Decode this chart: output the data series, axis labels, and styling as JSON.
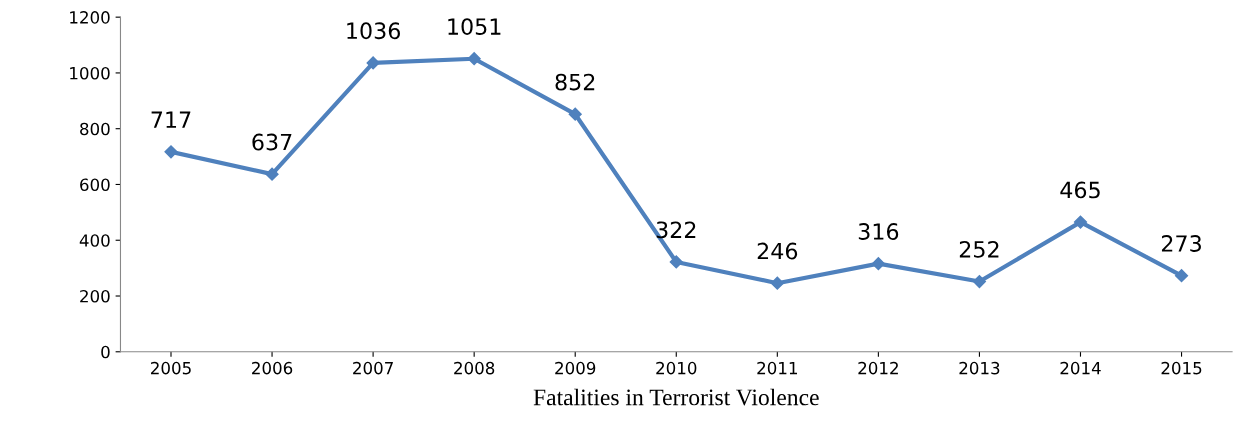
{
  "chart_data": {
    "type": "line",
    "xlabel": "Fatalities in Terrorist Violence",
    "categories": [
      "2005",
      "2006",
      "2007",
      "2008",
      "2009",
      "2010",
      "2011",
      "2012",
      "2013",
      "2014",
      "2015"
    ],
    "series": [
      {
        "color": "#4f81bd",
        "values": [
          717,
          637,
          1036,
          1051,
          852,
          322,
          246,
          316,
          252,
          465,
          273
        ]
      }
    ],
    "ylim": [
      0,
      1200
    ],
    "yticks": [
      0,
      200,
      400,
      600,
      800,
      1000,
      1200
    ],
    "data_labels": true,
    "marker": "diamond",
    "line_style": "solid",
    "grid": false,
    "legend": false
  }
}
